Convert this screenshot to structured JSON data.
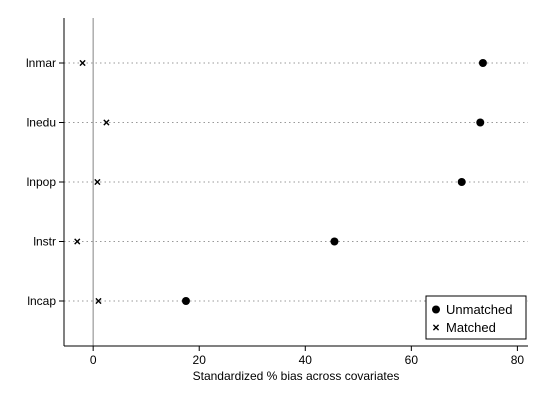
{
  "chart_data": {
    "type": "scatter",
    "title": "",
    "xlabel": "Standardized % bias across covariates",
    "ylabel": "",
    "xlim": [
      -5.5,
      82
    ],
    "xticks": [
      0,
      20,
      40,
      60,
      80
    ],
    "reference_line_x": 0,
    "grid": "dotted horizontal lines at each category",
    "legend_position": "bottom-right",
    "categories": [
      "lnmar",
      "lnedu",
      "lnpop",
      "lnstr",
      "lncap"
    ],
    "series": [
      {
        "name": "Unmatched",
        "marker": "filled-circle",
        "values": [
          73.5,
          73.0,
          69.5,
          45.5,
          17.5
        ]
      },
      {
        "name": "Matched",
        "marker": "x-cross",
        "values": [
          -2.0,
          2.5,
          0.8,
          -3.0,
          1.0
        ]
      }
    ],
    "colors": {
      "marker": "#000000",
      "grid": "#999999",
      "reference_line": "#999999"
    }
  }
}
